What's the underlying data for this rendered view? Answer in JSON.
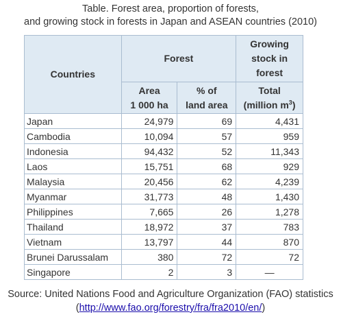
{
  "caption": {
    "line1": "Table.  Forest area, proportion of forests,",
    "line2": "and growing stock in forests in Japan and ASEAN countries (2010)"
  },
  "headers": {
    "countries": "Countries",
    "forest": "Forest",
    "growing_line1": "Growing",
    "growing_line2": "stock in",
    "growing_line3": "forest",
    "area_line1": "Area",
    "area_line2": "1 000 ha",
    "pct_line1": "% of",
    "pct_line2": "land area",
    "total_line1": "Total",
    "total_line2": "(million m",
    "total_sup": "3",
    "total_close": ")"
  },
  "rows": [
    {
      "country": "Japan",
      "area": "24,979",
      "pct": "69",
      "total": "4,431"
    },
    {
      "country": "Cambodia",
      "area": "10,094",
      "pct": "57",
      "total": "959"
    },
    {
      "country": "Indonesia",
      "area": "94,432",
      "pct": "52",
      "total": "11,343"
    },
    {
      "country": "Laos",
      "area": "15,751",
      "pct": "68",
      "total": "929"
    },
    {
      "country": "Malaysia",
      "area": "20,456",
      "pct": "62",
      "total": "4,239"
    },
    {
      "country": "Myanmar",
      "area": "31,773",
      "pct": "48",
      "total": "1,430"
    },
    {
      "country": "Philippines",
      "area": "7,665",
      "pct": "26",
      "total": "1,278"
    },
    {
      "country": "Thailand",
      "area": "18,972",
      "pct": "37",
      "total": "783"
    },
    {
      "country": "Vietnam",
      "area": "13,797",
      "pct": "44",
      "total": "870"
    },
    {
      "country": "Brunei Darussalam",
      "area": "380",
      "pct": "72",
      "total": "72"
    },
    {
      "country": "Singapore",
      "area": "2",
      "pct": "3",
      "total": "—"
    }
  ],
  "source": {
    "line1": "Source: United Nations Food and Agriculture Organization (FAO) statistics",
    "open": "(",
    "link": "http://www.fao.org/forestry/fra/fra2010/en/",
    "close": ")"
  }
}
